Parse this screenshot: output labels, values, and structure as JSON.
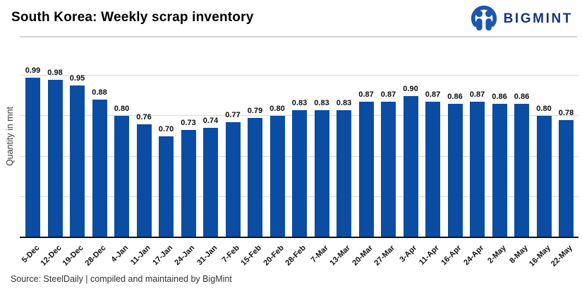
{
  "header": {
    "title": "South Korea: Weekly scrap inventory",
    "logo_text": "BIGMINT",
    "logo_color": "#15357e"
  },
  "chart_data": {
    "type": "bar",
    "title": "South Korea: Weekly scrap inventory",
    "xlabel": "",
    "ylabel": "Quantity in mnt",
    "categories": [
      "5-Dec",
      "12-Dec",
      "19-Dec",
      "28-Dec",
      "4-Jan",
      "11-Jan",
      "17-Jan",
      "24-Jan",
      "31-Jan",
      "7-Feb",
      "15-Feb",
      "20-Feb",
      "28-Feb",
      "7-Mar",
      "13-Mar",
      "20-Mar",
      "27-Mar",
      "3-Apr",
      "11-Apr",
      "16-Apr",
      "24-Apr",
      "2-May",
      "8-May",
      "16-May",
      "22-May"
    ],
    "values": [
      0.99,
      0.98,
      0.95,
      0.88,
      0.8,
      0.76,
      0.7,
      0.73,
      0.74,
      0.77,
      0.79,
      0.8,
      0.83,
      0.83,
      0.83,
      0.87,
      0.87,
      0.9,
      0.87,
      0.86,
      0.87,
      0.86,
      0.86,
      0.8,
      0.78
    ],
    "ylim": [
      0.2,
      1.0
    ],
    "gridline_values": [
      0.4,
      0.6,
      0.8,
      1.0
    ],
    "grid": "horizontal-only",
    "y_tick_labels_shown": false,
    "value_labels_shown": true,
    "value_label_format": "0.00",
    "legend": "none",
    "bar_color": "#0b4da2"
  },
  "footer": {
    "source": "Source: SteelDaily | compiled and maintained by BigMint"
  }
}
